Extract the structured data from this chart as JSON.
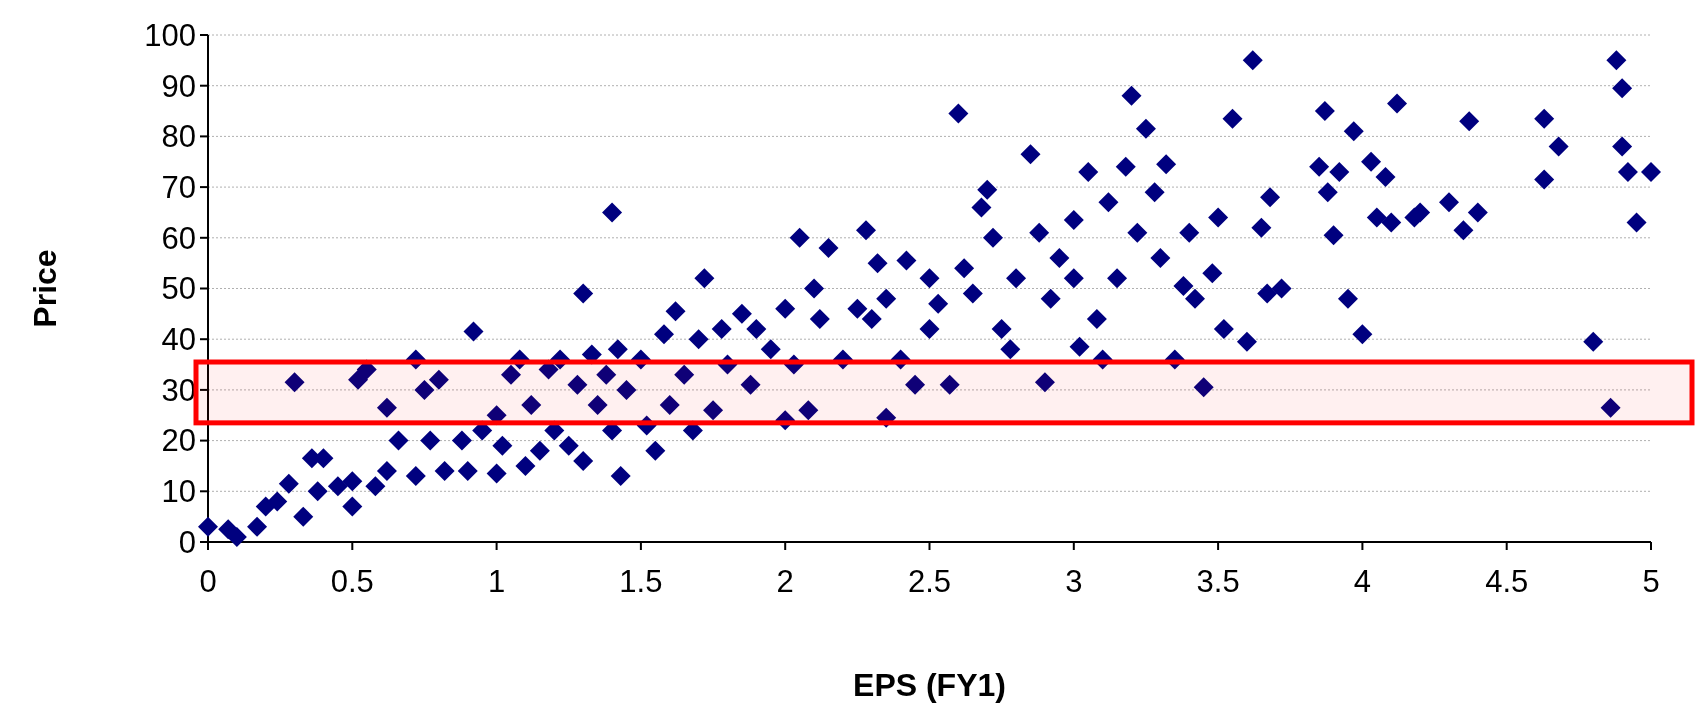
{
  "chart_data": {
    "type": "scatter",
    "xlabel": "EPS (FY1)",
    "ylabel": "Price",
    "xlim": [
      0,
      5
    ],
    "xticks": [
      0,
      0.5,
      1,
      1.5,
      2,
      2.5,
      3,
      3.5,
      4,
      4.5,
      5
    ],
    "ylim": [
      0,
      100
    ],
    "yticks": [
      0,
      10,
      20,
      30,
      40,
      50,
      60,
      70,
      80,
      90,
      100
    ],
    "grid": "y",
    "marker": "diamond",
    "bands": [
      {
        "axis": "y",
        "from": 23.5,
        "to": 35.5,
        "color": "#ff0000"
      }
    ],
    "series": [
      {
        "color": "#00007f",
        "x": [
          0,
          0.07,
          0.1,
          0.17,
          0.2,
          0.24,
          0.28,
          0.3,
          0.33,
          0.36,
          0.38,
          0.4,
          0.45,
          0.5,
          0.5,
          0.52,
          0.55,
          0.58,
          0.62,
          0.62,
          0.66,
          0.72,
          0.72,
          0.75,
          0.77,
          0.8,
          0.82,
          0.88,
          0.9,
          0.92,
          0.95,
          1.0,
          1.0,
          1.02,
          1.05,
          1.08,
          1.1,
          1.12,
          1.15,
          1.18,
          1.2,
          1.22,
          1.25,
          1.28,
          1.3,
          1.3,
          1.33,
          1.35,
          1.38,
          1.4,
          1.4,
          1.42,
          1.43,
          1.45,
          1.5,
          1.52,
          1.55,
          1.58,
          1.6,
          1.62,
          1.65,
          1.68,
          1.7,
          1.72,
          1.75,
          1.78,
          1.8,
          1.85,
          1.88,
          1.9,
          1.95,
          2.0,
          2.0,
          2.03,
          2.05,
          2.08,
          2.1,
          2.12,
          2.15,
          2.2,
          2.25,
          2.28,
          2.3,
          2.32,
          2.35,
          2.35,
          2.4,
          2.42,
          2.45,
          2.5,
          2.5,
          2.53,
          2.57,
          2.6,
          2.62,
          2.65,
          2.68,
          2.7,
          2.72,
          2.75,
          2.78,
          2.8,
          2.85,
          2.88,
          2.9,
          2.92,
          2.95,
          3.0,
          3.0,
          3.02,
          3.05,
          3.08,
          3.1,
          3.12,
          3.15,
          3.18,
          3.2,
          3.22,
          3.25,
          3.28,
          3.3,
          3.32,
          3.35,
          3.38,
          3.4,
          3.42,
          3.45,
          3.48,
          3.5,
          3.52,
          3.55,
          3.6,
          3.62,
          3.65,
          3.67,
          3.68,
          3.72,
          3.85,
          3.87,
          3.88,
          3.9,
          3.92,
          3.95,
          3.97,
          4.0,
          4.03,
          4.05,
          4.08,
          4.1,
          4.12,
          4.18,
          4.2,
          4.3,
          4.35,
          4.37,
          4.4,
          4.63,
          4.63,
          4.68,
          4.8,
          4.86,
          4.88,
          4.9,
          4.9,
          4.92,
          4.95,
          5.0
        ],
        "values": [
          3,
          2.5,
          1,
          3,
          7,
          8,
          11.5,
          31.5,
          5,
          16.5,
          10,
          16.5,
          11,
          12,
          7,
          32,
          34,
          11,
          14,
          26.5,
          20,
          13,
          36,
          30,
          20,
          32,
          14,
          20,
          14,
          41.5,
          22,
          13.5,
          25,
          19,
          33,
          36,
          15,
          27,
          18,
          34,
          22,
          36,
          19,
          31,
          49,
          16,
          37,
          27,
          33,
          65,
          22,
          38,
          13,
          30,
          36,
          23,
          18,
          41,
          27,
          45.5,
          33,
          22,
          40,
          52,
          26,
          42,
          35,
          45,
          31,
          42,
          38,
          24,
          46,
          35,
          60,
          26,
          50,
          44,
          58,
          36,
          46,
          61.5,
          44,
          55,
          24.5,
          48,
          36,
          55.5,
          31,
          52,
          42,
          47,
          31,
          84.5,
          54,
          49,
          66,
          69.5,
          60,
          42,
          38,
          52,
          76.5,
          61,
          31.5,
          48,
          56,
          52,
          63.5,
          38.5,
          73,
          44,
          36,
          67,
          52,
          74,
          88,
          61,
          81.5,
          69,
          56,
          74.5,
          36,
          50.5,
          61,
          48,
          30.5,
          53,
          64,
          42,
          83.5,
          39.5,
          95,
          62,
          49,
          68,
          50,
          74,
          85,
          69,
          60.5,
          73,
          48,
          81,
          41,
          75,
          64,
          72,
          63,
          86.5,
          64,
          65,
          67,
          61.5,
          83,
          65,
          83.5,
          71.5,
          78,
          39.5,
          26.5,
          95,
          89.5,
          78,
          73,
          63,
          73
        ]
      }
    ]
  }
}
